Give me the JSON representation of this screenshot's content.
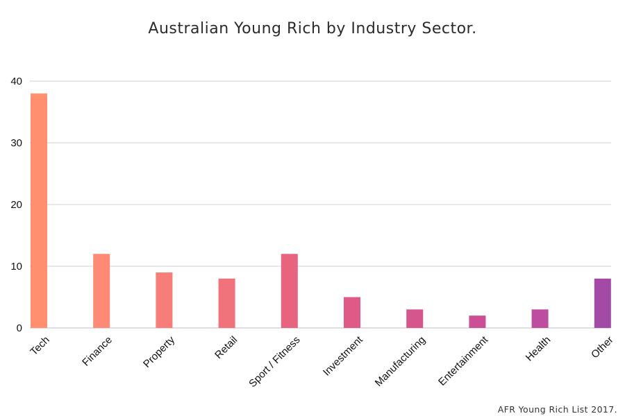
{
  "chart_data": {
    "type": "bar",
    "title": "Australian Young Rich by Industry Sector.",
    "xlabel": "",
    "ylabel": "",
    "categories": [
      "Tech",
      "Finance",
      "Property",
      "Retail",
      "Sport / Fitness",
      "Investment",
      "Manufacturing",
      "Entertainment",
      "Health",
      "Other"
    ],
    "values": [
      38,
      12,
      9,
      8,
      12,
      5,
      3,
      2,
      3,
      8
    ],
    "ylim": [
      0,
      40
    ],
    "yticks": [
      0,
      10,
      20,
      30,
      40
    ],
    "grid": true,
    "legend": "none",
    "bar_colors": [
      "#ff8f6e",
      "#fc8a74",
      "#f77d78",
      "#f0727a",
      "#e8647e",
      "#df5a86",
      "#d5558d",
      "#cc4f96",
      "#bd4d9e",
      "#a24aa6"
    ],
    "source": "AFR Young Rich List 2017."
  }
}
